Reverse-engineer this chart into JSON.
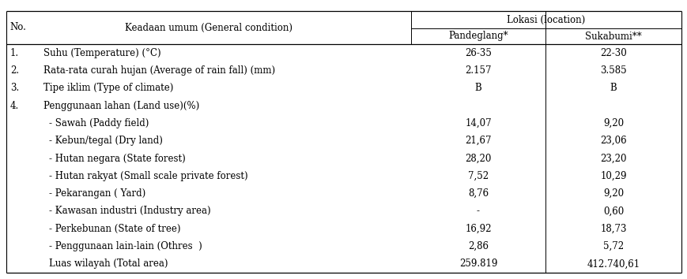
{
  "rows": [
    [
      "1.",
      "Suhu (Temperature) (°C)",
      "26-35",
      "22-30"
    ],
    [
      "2.",
      "Rata-rata curah hujan (Average of rain fall) (mm)",
      "2.157",
      "3.585"
    ],
    [
      "3.",
      "Tipe iklim (Type of climate)",
      "B",
      "B"
    ],
    [
      "4.",
      "Penggunaan lahan (Land use)(%)",
      "",
      ""
    ],
    [
      "",
      "- Sawah (Paddy field)",
      "14,07",
      "9,20"
    ],
    [
      "",
      "- Kebun/tegal (Dry land)",
      "21,67",
      "23,06"
    ],
    [
      "",
      "- Hutan negara (State forest)",
      "28,20",
      "23,20"
    ],
    [
      "",
      "- Hutan rakyat (Small scale private forest)",
      "7,52",
      "10,29"
    ],
    [
      "",
      "- Pekarangan ( Yard)",
      "8,76",
      "9,20"
    ],
    [
      "",
      "- Kawasan industri (Industry area)",
      "-",
      "0,60"
    ],
    [
      "",
      "- Perkebunan (State of tree)",
      "16,92",
      "18,73"
    ],
    [
      "",
      "- Penggunaan lain-lain (Othres  )",
      "2,86",
      "5,72"
    ],
    [
      "",
      "Luas wilayah (Total area)",
      "259.819",
      "412.740,61"
    ]
  ],
  "header_row1_col1": "No.",
  "header_row1_col2": "Keadaan umum (General condition)",
  "header_row1_col34": "Lokasi (location)",
  "header_row2_col3": "Pandeglang*",
  "header_row2_col4": "Sukabumi**",
  "bg_color": "#ffffff",
  "text_color": "#000000",
  "line_color": "#000000",
  "font_size": 8.5,
  "font_family": "serif"
}
